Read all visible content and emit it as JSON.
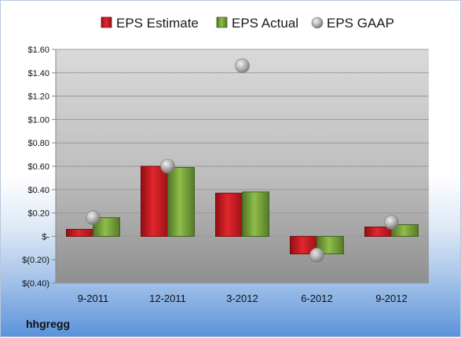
{
  "chart_data": {
    "type": "bar",
    "categories": [
      "9-2011",
      "12-2011",
      "3-2012",
      "6-2012",
      "9-2012"
    ],
    "series": [
      {
        "name": "EPS Estimate",
        "kind": "bar",
        "color": "#cc1f26",
        "values": [
          0.06,
          0.6,
          0.37,
          -0.15,
          0.08
        ]
      },
      {
        "name": "EPS Actual",
        "kind": "bar",
        "color": "#7aa33a",
        "values": [
          0.16,
          0.59,
          0.38,
          -0.15,
          0.1
        ]
      },
      {
        "name": "EPS GAAP",
        "kind": "marker",
        "color": "#a8a8a8",
        "values": [
          0.16,
          0.6,
          1.46,
          -0.16,
          0.12
        ]
      }
    ],
    "ylim": [
      -0.4,
      1.6
    ],
    "yticks": [
      -0.4,
      -0.2,
      0,
      0.2,
      0.4,
      0.6,
      0.8,
      1.0,
      1.2,
      1.4,
      1.6
    ],
    "ytick_labels": [
      "$(0.40)",
      "$(0.20)",
      "$-",
      "$0.20",
      "$0.40",
      "$0.60",
      "$0.80",
      "$1.00",
      "$1.20",
      "$1.40",
      "$1.60"
    ],
    "legend_position": "top",
    "grid": true
  },
  "brand": "hhgregg"
}
